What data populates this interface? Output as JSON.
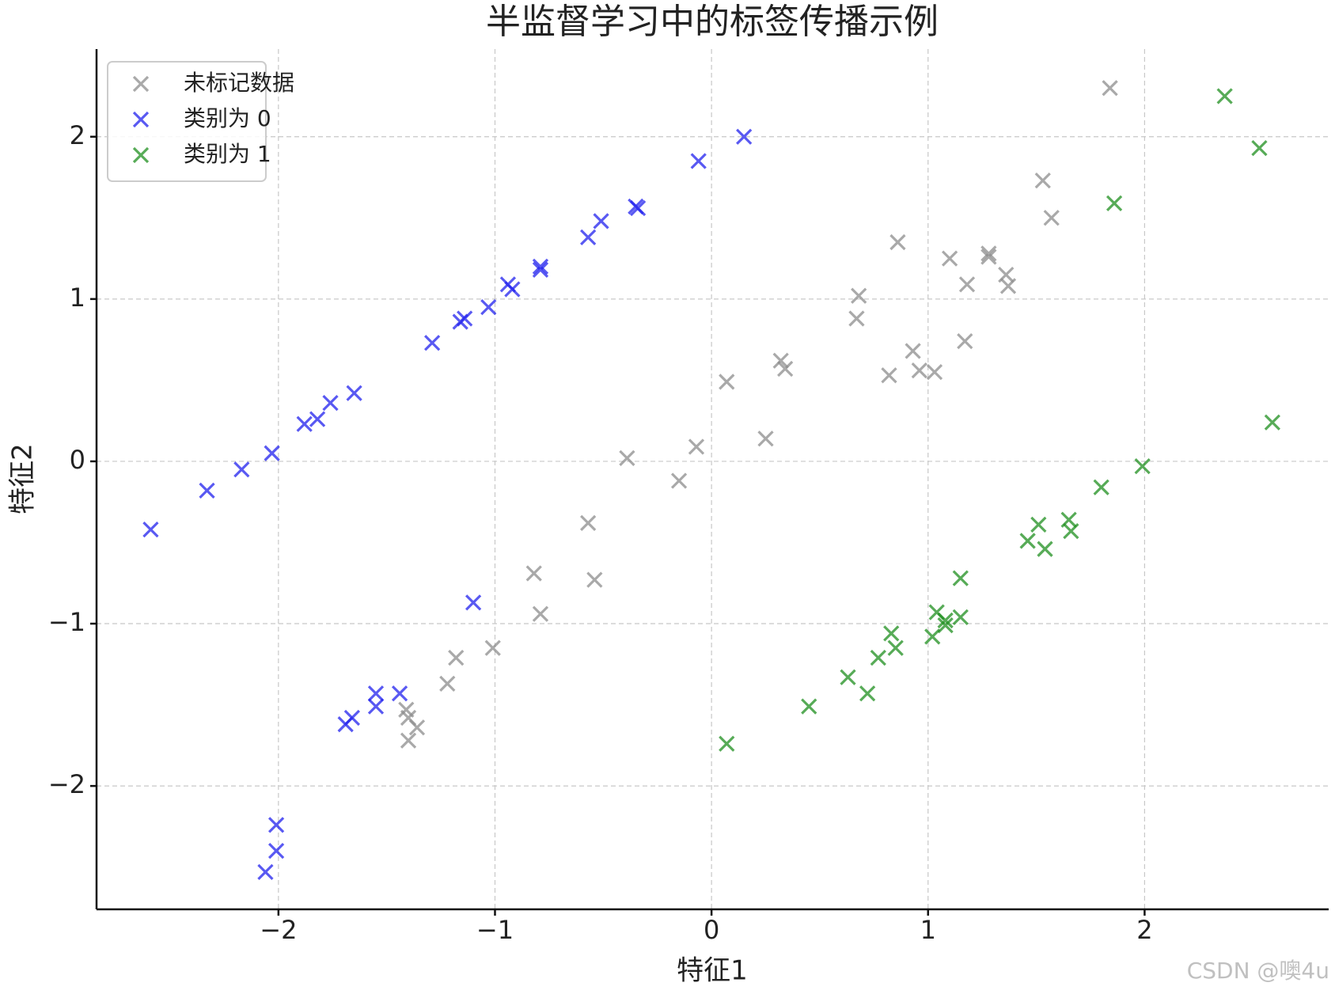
{
  "chart_data": {
    "type": "scatter",
    "title": "半监督学习中的标签传播示例",
    "xlabel": "特征1",
    "ylabel": "特征2",
    "xlim": [
      -2.84,
      2.85
    ],
    "ylim": [
      -2.76,
      2.54
    ],
    "xticks": [
      {
        "value": -2,
        "label": "−2"
      },
      {
        "value": -1,
        "label": "−1"
      },
      0,
      1,
      2
    ],
    "yticks": [
      {
        "value": -2,
        "label": "−2"
      },
      {
        "value": -1,
        "label": "−1"
      },
      0,
      1,
      2
    ],
    "grid": true,
    "legend": "upper left",
    "marker": "x",
    "watermark": "CSDN @噢4u",
    "series": [
      {
        "name": "未标记数据",
        "color": "#8c8c8c",
        "x": [
          1.84,
          1.53,
          1.57,
          0.86,
          1.1,
          1.28,
          1.28,
          1.36,
          1.18,
          1.37,
          0.68,
          0.67,
          1.17,
          0.93,
          0.32,
          0.34,
          0.96,
          1.03,
          0.82,
          0.07,
          -0.07,
          0.25,
          -0.39,
          -0.15,
          -0.57,
          -0.82,
          -0.54,
          -0.79,
          -1.01,
          -1.18,
          -1.22,
          -1.41,
          -1.4,
          -1.36,
          -1.4
        ],
        "y": [
          2.3,
          1.73,
          1.5,
          1.35,
          1.25,
          1.28,
          1.26,
          1.15,
          1.09,
          1.08,
          1.02,
          0.88,
          0.74,
          0.68,
          0.62,
          0.57,
          0.56,
          0.55,
          0.53,
          0.49,
          0.09,
          0.14,
          0.02,
          -0.12,
          -0.38,
          -0.69,
          -0.73,
          -0.94,
          -1.15,
          -1.21,
          -1.37,
          -1.53,
          -1.58,
          -1.64,
          -1.72
        ]
      },
      {
        "name": "类别为 0",
        "color": "#2222ee",
        "x": [
          0.15,
          -0.06,
          -0.35,
          -0.34,
          -0.51,
          -0.57,
          -0.79,
          -0.79,
          -0.94,
          -0.92,
          -1.03,
          -1.14,
          -1.16,
          -1.29,
          -1.65,
          -1.76,
          -1.82,
          -1.88,
          -2.03,
          -2.17,
          -2.33,
          -2.59,
          -1.1,
          -1.44,
          -1.55,
          -1.55,
          -1.66,
          -1.69,
          -2.01,
          -2.01,
          -2.06
        ],
        "y": [
          2.0,
          1.85,
          1.57,
          1.56,
          1.48,
          1.38,
          1.2,
          1.18,
          1.09,
          1.06,
          0.95,
          0.88,
          0.86,
          0.73,
          0.42,
          0.36,
          0.26,
          0.23,
          0.05,
          -0.05,
          -0.18,
          -0.42,
          -0.87,
          -1.43,
          -1.43,
          -1.51,
          -1.58,
          -1.62,
          -2.24,
          -2.4,
          -2.53
        ]
      },
      {
        "name": "类别为 1",
        "color": "#1f8f1f",
        "x": [
          2.37,
          2.53,
          1.86,
          2.59,
          1.99,
          1.8,
          1.65,
          1.66,
          1.51,
          1.46,
          1.54,
          1.15,
          1.04,
          1.15,
          1.08,
          1.08,
          1.02,
          0.83,
          0.85,
          0.77,
          0.63,
          0.72,
          0.45,
          0.07
        ],
        "y": [
          2.25,
          1.93,
          1.59,
          0.24,
          -0.03,
          -0.16,
          -0.36,
          -0.43,
          -0.39,
          -0.49,
          -0.54,
          -0.72,
          -0.93,
          -0.96,
          -0.98,
          -1.01,
          -1.08,
          -1.06,
          -1.15,
          -1.21,
          -1.33,
          -1.43,
          -1.51,
          -1.74
        ]
      }
    ]
  }
}
